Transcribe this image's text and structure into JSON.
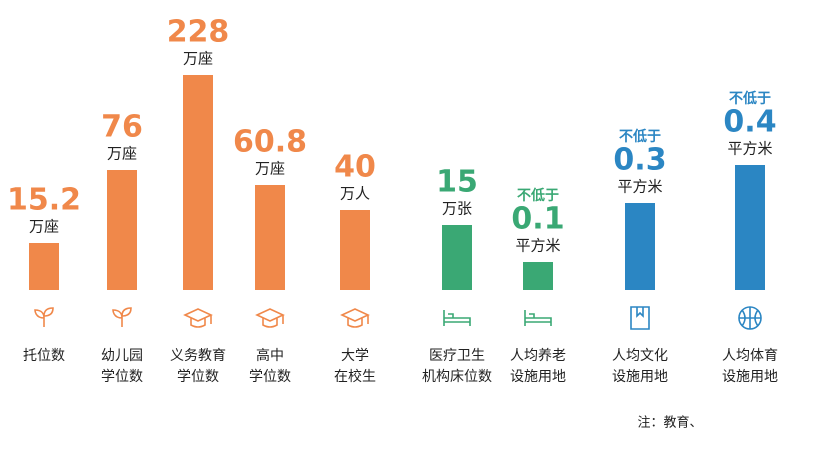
{
  "groups": [
    {
      "color": "#f0884a",
      "items": [
        {
          "value": 15.2,
          "unit": "万座",
          "label": [
            "托位数"
          ]
        },
        {
          "value": 76,
          "unit": "万座",
          "label": [
            "幼儿园",
            "学位数"
          ]
        },
        {
          "value": 228,
          "unit": "万座",
          "label": [
            "义务教育",
            "学位数"
          ]
        },
        {
          "value": 60.8,
          "unit": "万座",
          "label": [
            "高中",
            "学位数"
          ]
        },
        {
          "value": 40,
          "unit": "万人",
          "label": [
            "大学",
            "在校生"
          ]
        }
      ]
    },
    {
      "color": "#3aa874",
      "items": [
        {
          "value": 15,
          "unit": "万张",
          "label": [
            "医疗卫生",
            "机构床位数"
          ]
        },
        {
          "prefix": "不低于",
          "value": 0.1,
          "unit": "平方米",
          "label": [
            "人均养老",
            "设施用地"
          ]
        }
      ]
    },
    {
      "color": "#2b86c3",
      "items": [
        {
          "prefix": "不低于",
          "value": 0.3,
          "unit": "平方米",
          "label": [
            "人均文化",
            "设施用地"
          ]
        },
        {
          "prefix": "不低于",
          "value": 0.4,
          "unit": "平方米",
          "label": [
            "人均体育",
            "设施用地"
          ]
        }
      ]
    }
  ],
  "note": "注：教育、"
}
